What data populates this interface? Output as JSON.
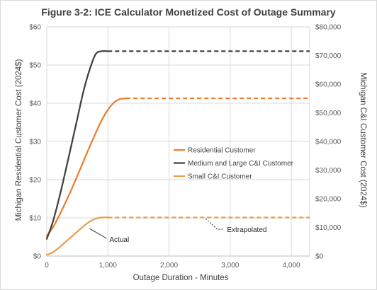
{
  "chart_data": {
    "type": "line",
    "title": "Figure 3-2: ICE Calculator Monetized Cost of Outage Summary",
    "xlabel": "Outage Duration - Minutes",
    "ylabel_left": "Michigan Residential Customer Cost (2024$)",
    "ylabel_right": "Michigan C&I Customer Cost (2024$)",
    "x_ticks": [
      "0",
      "1,000",
      "2,000",
      "3,000",
      "4,000"
    ],
    "y_left_ticks": [
      "$0",
      "$10",
      "$20",
      "$30",
      "$40",
      "$50",
      "$60"
    ],
    "y_right_ticks": [
      "$0",
      "$10,000",
      "$20,000",
      "$30,000",
      "$40,000",
      "$50,000",
      "$60,000",
      "$70,000",
      "$80,000"
    ],
    "xlim": [
      0,
      4300
    ],
    "ylim_left": [
      0,
      60
    ],
    "ylim_right": [
      0,
      80000
    ],
    "grid": true,
    "legend_position": "center-right",
    "series": [
      {
        "name": "Residential Customer",
        "color": "#ED7D31",
        "axis": "left",
        "actual_x": [
          0,
          100,
          200,
          300,
          400,
          500,
          600,
          700,
          800,
          900,
          1000,
          1100,
          1200,
          1300
        ],
        "actual_y": [
          5.2,
          7.5,
          10.5,
          13.8,
          17.3,
          21.0,
          24.8,
          28.6,
          32.2,
          35.6,
          38.3,
          40.2,
          41.1,
          41.3
        ],
        "extrapolated_x": [
          1300,
          4300
        ],
        "extrapolated_y": [
          41.3,
          41.3
        ]
      },
      {
        "name": "Medium and Large C&I Customer",
        "color": "#404040",
        "axis": "right",
        "actual_x": [
          0,
          100,
          200,
          300,
          400,
          500,
          600,
          700,
          800,
          900,
          1000
        ],
        "actual_y": [
          6000,
          12000,
          20000,
          29000,
          38500,
          48000,
          57500,
          65000,
          70500,
          71500,
          71500
        ],
        "extrapolated_x": [
          1000,
          4300
        ],
        "extrapolated_y": [
          71500,
          71500
        ]
      },
      {
        "name": "Small C&I Customer",
        "color": "#E8A04C",
        "axis": "left",
        "actual_x": [
          0,
          100,
          200,
          300,
          400,
          500,
          600,
          700,
          800,
          900,
          1000
        ],
        "actual_y": [
          0.3,
          1.0,
          2.2,
          3.6,
          5.0,
          6.4,
          7.8,
          9.0,
          9.8,
          10.1,
          10.1
        ],
        "extrapolated_x": [
          1000,
          4300
        ],
        "extrapolated_y": [
          10.1,
          10.1
        ]
      }
    ],
    "annotations": [
      {
        "text": "Actual",
        "points_to": {
          "x": 700,
          "y_left": 7.2
        }
      },
      {
        "text": "Extrapolated",
        "points_to": {
          "x": 2600,
          "y_left": 9.8
        }
      }
    ]
  }
}
